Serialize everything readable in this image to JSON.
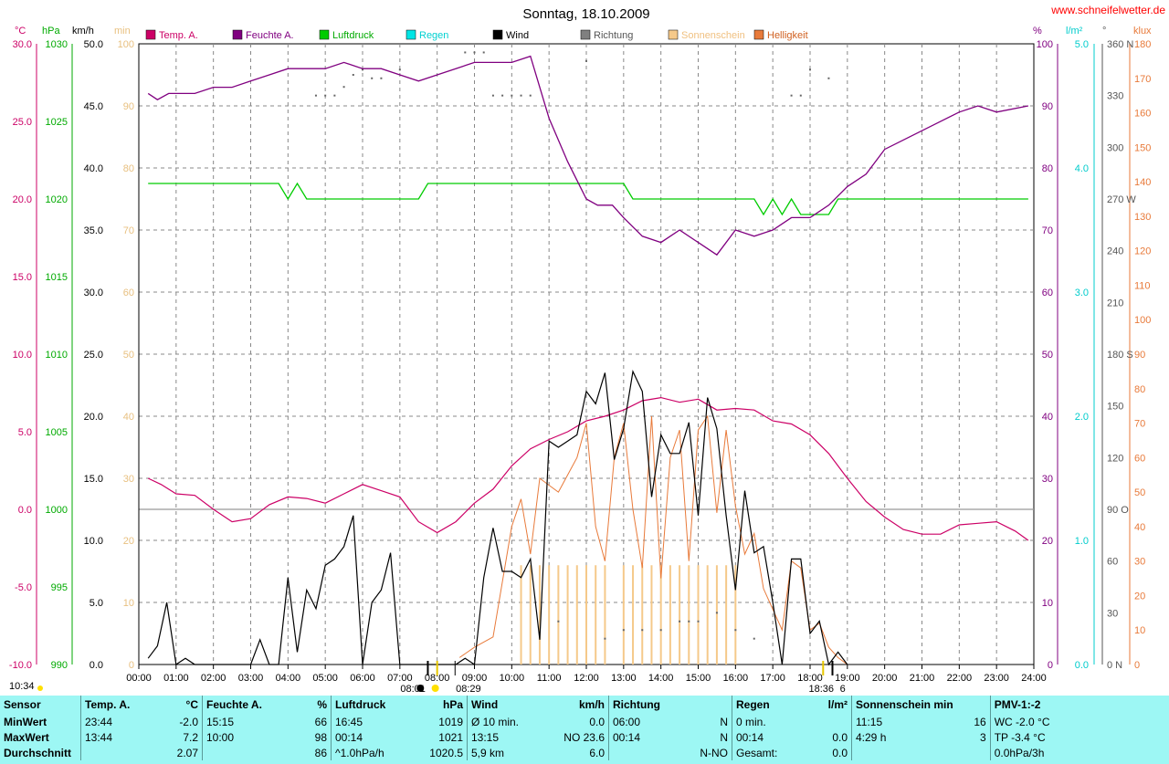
{
  "header": {
    "title": "Sonntag, 18.10.2009",
    "website": "www.schneifelwetter.de"
  },
  "legend": [
    {
      "label": "Temp. A.",
      "color": "#cc0066"
    },
    {
      "label": "Feuchte A.",
      "color": "#800080"
    },
    {
      "label": "Luftdruck",
      "color": "#00cc00"
    },
    {
      "label": "Regen",
      "color": "#00e5e5"
    },
    {
      "label": "Wind",
      "color": "#000000"
    },
    {
      "label": "Richtung",
      "color": "#808080"
    },
    {
      "label": "Sonnenschein",
      "color": "#f5c98a"
    },
    {
      "label": "Helligkeit",
      "color": "#e87a3a"
    }
  ],
  "axes": {
    "temp": {
      "unit": "°C",
      "color": "#cc0066",
      "ticks": [
        "30.0",
        "25.0",
        "20.0",
        "15.0",
        "10.0",
        "5.0",
        "0.0",
        "-5.0",
        "-10.0"
      ]
    },
    "pressure": {
      "unit": "hPa",
      "color": "#00aa00",
      "ticks": [
        "1030",
        "1025",
        "1020",
        "1015",
        "1010",
        "1005",
        "1000",
        "995",
        "990"
      ]
    },
    "wind": {
      "unit": "km/h",
      "color": "#000000",
      "ticks": [
        "50.0",
        "45.0",
        "40.0",
        "35.0",
        "30.0",
        "25.0",
        "20.0",
        "15.0",
        "10.0",
        "5.0",
        "0.0"
      ]
    },
    "sun": {
      "unit": "min",
      "color": "#f5c98a",
      "ticks": [
        "100",
        "90",
        "80",
        "70",
        "60",
        "50",
        "40",
        "30",
        "20",
        "10",
        "0"
      ]
    },
    "humidity": {
      "unit": "%",
      "color": "#800080",
      "ticks": [
        "100",
        "90",
        "80",
        "70",
        "60",
        "50",
        "40",
        "30",
        "20",
        "10",
        "0"
      ]
    },
    "rain": {
      "unit": "l/m²",
      "color": "#00cccc",
      "ticks": [
        "5.0",
        "4.0",
        "3.0",
        "2.0",
        "1.0",
        "0.0"
      ]
    },
    "direction": {
      "unit": "°",
      "color": "#555555",
      "ticks": [
        "360 N",
        "330",
        "300",
        "270 W",
        "240",
        "210",
        "180 S",
        "150",
        "120",
        "90  O",
        "60",
        "30",
        "0    N"
      ]
    },
    "brightness": {
      "unit": "klux",
      "color": "#e87a3a",
      "ticks": [
        "180",
        "170",
        "160",
        "150",
        "140",
        "130",
        "120",
        "110",
        "100",
        "90",
        "80",
        "70",
        "60",
        "50",
        "40",
        "30",
        "20",
        "10",
        "0"
      ]
    },
    "time": {
      "ticks": [
        "00:00",
        "01:00",
        "02:00",
        "03:00",
        "04:00",
        "05:00",
        "06:00",
        "07:00",
        "08:00",
        "09:00",
        "10:00",
        "11:00",
        "12:00",
        "13:00",
        "14:00",
        "15:00",
        "16:00",
        "17:00",
        "18:00",
        "19:00",
        "20:00",
        "21:00",
        "22:00",
        "23:00",
        "24:00"
      ]
    }
  },
  "sun_markers": {
    "sunrise": "08:01",
    "sunrise2": "08:29",
    "sunset": "18:36",
    "time_note": "10:34",
    "sunset_digit": "6"
  },
  "chart_data": {
    "type": "line",
    "x_unit": "hour",
    "grid": true,
    "series": [
      {
        "name": "Temp. A.",
        "axis": "temp",
        "x": [
          0.25,
          0.6,
          1.0,
          1.5,
          2.0,
          2.5,
          3.0,
          3.5,
          4.0,
          4.5,
          5.0,
          5.5,
          6.0,
          6.5,
          7.0,
          7.5,
          8.0,
          8.5,
          9.0,
          9.5,
          10.0,
          10.5,
          11.0,
          11.5,
          12.0,
          12.5,
          13.0,
          13.5,
          14.0,
          14.5,
          15.0,
          15.5,
          16.0,
          16.5,
          17.0,
          17.5,
          18.0,
          18.5,
          19.0,
          19.5,
          20.0,
          20.5,
          21.0,
          21.5,
          22.0,
          22.5,
          23.0,
          23.5,
          23.85
        ],
        "y": [
          2.0,
          1.6,
          1.0,
          0.9,
          0.0,
          -0.8,
          -0.6,
          0.3,
          0.8,
          0.7,
          0.4,
          1.0,
          1.6,
          1.2,
          0.8,
          -0.8,
          -1.5,
          -0.8,
          0.4,
          1.3,
          2.8,
          3.9,
          4.5,
          5.0,
          5.7,
          6.0,
          6.4,
          7.0,
          7.2,
          6.9,
          7.1,
          6.4,
          6.5,
          6.4,
          5.7,
          5.5,
          4.8,
          3.6,
          2.0,
          0.5,
          -0.5,
          -1.3,
          -1.6,
          -1.6,
          -1.0,
          -0.9,
          -0.8,
          -1.4,
          -2.0
        ]
      },
      {
        "name": "Feuchte A.",
        "axis": "humidity",
        "x": [
          0.25,
          0.5,
          0.8,
          1.5,
          2.0,
          2.5,
          3.0,
          3.5,
          4.0,
          4.5,
          5.0,
          5.5,
          6.0,
          6.5,
          7.0,
          7.5,
          8.0,
          8.5,
          9.0,
          9.5,
          10.0,
          10.5,
          11.0,
          11.5,
          12.0,
          12.3,
          12.7,
          13.0,
          13.5,
          14.0,
          14.5,
          15.0,
          15.5,
          16.0,
          16.5,
          17.0,
          17.5,
          18.0,
          18.5,
          19.0,
          19.5,
          20.0,
          21.0,
          22.0,
          22.5,
          23.0,
          23.85
        ],
        "y": [
          92,
          91,
          92,
          92,
          93,
          93,
          94,
          95,
          96,
          96,
          96,
          97,
          96,
          96,
          95,
          94,
          95,
          96,
          97,
          97,
          97,
          98,
          88,
          81,
          75,
          74,
          74,
          72,
          69,
          68,
          70,
          68,
          66,
          70,
          69,
          70,
          72,
          72,
          74,
          77,
          79,
          83,
          86,
          89,
          90,
          89,
          90
        ]
      },
      {
        "name": "Luftdruck",
        "axis": "pressure",
        "x": [
          0.25,
          3.75,
          4.0,
          4.25,
          4.5,
          7.5,
          7.75,
          13.0,
          13.25,
          16.5,
          16.75,
          17.0,
          17.25,
          17.5,
          17.75,
          18.0,
          18.5,
          18.75,
          23.85
        ],
        "y": [
          1021,
          1021,
          1020,
          1021,
          1020,
          1020,
          1021,
          1021,
          1020,
          1020,
          1019,
          1020,
          1019,
          1020,
          1019,
          1019,
          1019,
          1020,
          1020
        ]
      },
      {
        "name": "Wind",
        "axis": "wind",
        "x": [
          0.25,
          0.5,
          0.75,
          1.0,
          1.25,
          1.5,
          2.0,
          3.0,
          3.25,
          3.5,
          3.75,
          4.0,
          4.25,
          4.5,
          4.75,
          5.0,
          5.25,
          5.5,
          5.75,
          6.0,
          6.25,
          6.5,
          6.75,
          7.0,
          8.0,
          8.5,
          8.75,
          9.0,
          9.25,
          9.5,
          9.75,
          10.0,
          10.25,
          10.5,
          10.75,
          11.0,
          11.25,
          11.5,
          11.75,
          12.0,
          12.25,
          12.5,
          12.75,
          13.0,
          13.25,
          13.5,
          13.75,
          14.0,
          14.25,
          14.5,
          14.75,
          15.0,
          15.25,
          15.5,
          15.75,
          16.0,
          16.25,
          16.5,
          16.75,
          17.0,
          17.25,
          17.5,
          17.75,
          18.0,
          18.25,
          18.5,
          18.75,
          19.0
        ],
        "y": [
          0.5,
          1.5,
          5.0,
          0.0,
          0.5,
          0.0,
          0.0,
          0.0,
          2.0,
          0.0,
          0.0,
          7.0,
          1.0,
          6.0,
          4.5,
          8.0,
          8.5,
          9.5,
          12.0,
          0.0,
          5.0,
          6.0,
          9.0,
          0.0,
          0.0,
          0.0,
          0.5,
          0.0,
          7.0,
          11.0,
          7.5,
          7.5,
          7.0,
          8.5,
          2.0,
          18.0,
          17.5,
          18.0,
          18.5,
          22.0,
          21.0,
          23.5,
          16.5,
          19.0,
          23.6,
          22.0,
          13.5,
          18.5,
          17.0,
          17.0,
          19.5,
          12.0,
          21.5,
          19.0,
          12.0,
          6.0,
          14.0,
          9.0,
          9.5,
          5.0,
          0.0,
          8.5,
          8.5,
          2.5,
          3.5,
          0.0,
          1.0,
          0.0
        ]
      },
      {
        "name": "Helligkeit",
        "axis": "brightness",
        "x": [
          8.6,
          9.0,
          9.5,
          10.0,
          10.25,
          10.5,
          10.75,
          11.0,
          11.25,
          11.5,
          11.75,
          12.0,
          12.25,
          12.5,
          12.75,
          13.0,
          13.25,
          13.5,
          13.75,
          14.0,
          14.25,
          14.5,
          14.75,
          15.0,
          15.25,
          15.5,
          15.75,
          16.0,
          16.25,
          16.5,
          16.75,
          17.0,
          17.25,
          17.5,
          17.75,
          18.0,
          18.25,
          18.5,
          18.75,
          19.0
        ],
        "y": [
          2,
          5,
          8,
          40,
          48,
          32,
          54,
          52,
          50,
          55,
          60,
          70,
          40,
          30,
          60,
          70,
          45,
          28,
          72,
          25,
          60,
          68,
          30,
          68,
          72,
          44,
          68,
          46,
          32,
          38,
          22,
          16,
          10,
          30,
          28,
          10,
          12,
          5,
          2,
          0
        ]
      },
      {
        "name": "Sonnenschein",
        "axis": "sun",
        "x": [
          10.25,
          10.5,
          10.75,
          11.0,
          11.25,
          11.5,
          11.75,
          12.0,
          12.25,
          12.5,
          13.0,
          13.25,
          13.5,
          13.75,
          14.0,
          14.25,
          14.5,
          14.75,
          15.0,
          15.25,
          15.5,
          15.75,
          16.0
        ],
        "y": [
          16,
          16,
          16,
          16,
          16,
          16,
          16,
          16,
          16,
          16,
          16,
          16,
          16,
          16,
          16,
          16,
          16,
          16,
          16,
          16,
          16,
          16,
          16
        ]
      },
      {
        "name": "Richtung",
        "axis": "direction",
        "x": [
          4.75,
          5.0,
          5.25,
          5.5,
          5.75,
          6.0,
          6.25,
          6.5,
          7.0,
          8.75,
          9.0,
          9.25,
          9.5,
          9.75,
          10.0,
          10.25,
          10.5,
          11.25,
          12.0,
          12.5,
          13.0,
          13.5,
          14.0,
          14.5,
          14.75,
          15.0,
          15.5,
          16.0,
          16.5,
          17.0,
          17.5,
          17.75,
          18.0,
          18.5
        ],
        "y": [
          330,
          330,
          330,
          335,
          342,
          345,
          340,
          340,
          345,
          355,
          355,
          355,
          330,
          330,
          330,
          330,
          330,
          25,
          350,
          15,
          20,
          20,
          20,
          25,
          25,
          25,
          30,
          20,
          15,
          40,
          330,
          330,
          345,
          340
        ]
      }
    ]
  },
  "footer": {
    "headers": [
      "Sensor",
      "Temp. A.",
      "°C",
      "Feuchte A.",
      "%",
      "Luftdruck",
      "hPa",
      "Wind",
      "km/h",
      "Richtung",
      "",
      "Regen",
      "l/m²",
      "Sonnenschein min",
      "",
      "PMV-1:-2"
    ],
    "rows": [
      [
        "MinWert",
        "23:44",
        "-2.0",
        "15:15",
        "66",
        "16:45",
        "1019",
        "Ø 10 min.",
        "0.0",
        "06:00",
        "N",
        "0 min.",
        "",
        "11:15",
        "16",
        "WC -2.0 °C"
      ],
      [
        "MaxWert",
        "13:44",
        "7.2",
        "10:00",
        "98",
        "00:14",
        "1021",
        "13:15",
        "NO 23.6",
        "00:14",
        "N",
        "00:14",
        "0.0",
        "4:29 h",
        "3",
        "TP -3.4 °C"
      ],
      [
        "Durchschnitt",
        "",
        "2.07",
        "",
        "86",
        "^1.0hPa/h",
        "1020.5",
        "5,9 km",
        "6.0",
        "",
        "N-NO",
        "Gesamt:",
        "0.0",
        "",
        "",
        "0.0hPa/3h"
      ]
    ]
  }
}
